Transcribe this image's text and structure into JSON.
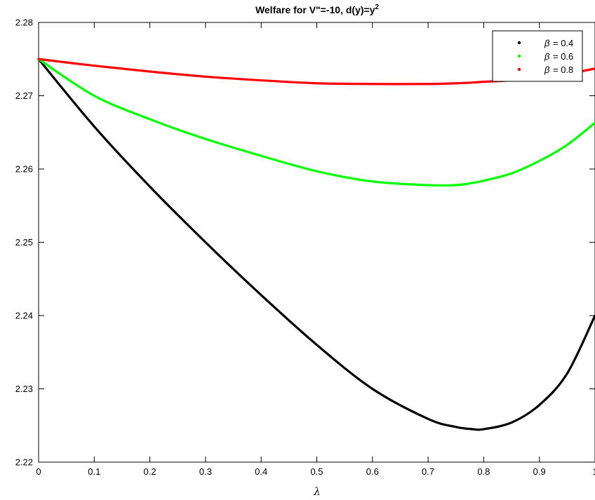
{
  "chart_data": {
    "type": "line",
    "title": "Welfare for V\"=-10, d(y)=y",
    "title_superscript": "2",
    "xlabel": "λ",
    "ylabel": "",
    "xlim": [
      0,
      1
    ],
    "ylim": [
      2.22,
      2.28
    ],
    "x_ticks": [
      "0",
      "0.1",
      "0.2",
      "0.3",
      "0.4",
      "0.5",
      "0.6",
      "0.7",
      "0.8",
      "0.9",
      "1"
    ],
    "y_ticks": [
      "2.22",
      "2.23",
      "2.24",
      "2.25",
      "2.26",
      "2.27",
      "2.28"
    ],
    "grid": false,
    "legend_position": "top-right",
    "x": [
      0,
      0.1,
      0.2,
      0.3,
      0.4,
      0.5,
      0.6,
      0.7,
      0.75,
      0.78,
      0.8,
      0.85,
      0.9,
      0.95,
      1.0
    ],
    "series": [
      {
        "name": "β = 0.4",
        "legend_symbol": "β",
        "legend_value": "= 0.4",
        "color": "#000000",
        "values": [
          2.275,
          2.2658,
          2.2576,
          2.25,
          2.2428,
          2.236,
          2.23,
          2.2259,
          2.2248,
          2.2245,
          2.2245,
          2.2254,
          2.2278,
          2.2321,
          2.24
        ]
      },
      {
        "name": "β = 0.6",
        "legend_symbol": "β",
        "legend_value": "= 0.6",
        "color": "#00ff00",
        "values": [
          2.275,
          2.27,
          2.2668,
          2.2641,
          2.2618,
          2.2597,
          2.2583,
          2.2578,
          2.2578,
          2.2581,
          2.2584,
          2.2594,
          2.2611,
          2.2633,
          2.2663
        ]
      },
      {
        "name": "β = 0.8",
        "legend_symbol": "β",
        "legend_value": "= 0.8",
        "color": "#ff0000",
        "values": [
          2.275,
          2.2741,
          2.2733,
          2.2726,
          2.2721,
          2.2717,
          2.2716,
          2.2716,
          2.2717,
          2.2718,
          2.2719,
          2.2721,
          2.2725,
          2.273,
          2.2737
        ]
      }
    ]
  }
}
